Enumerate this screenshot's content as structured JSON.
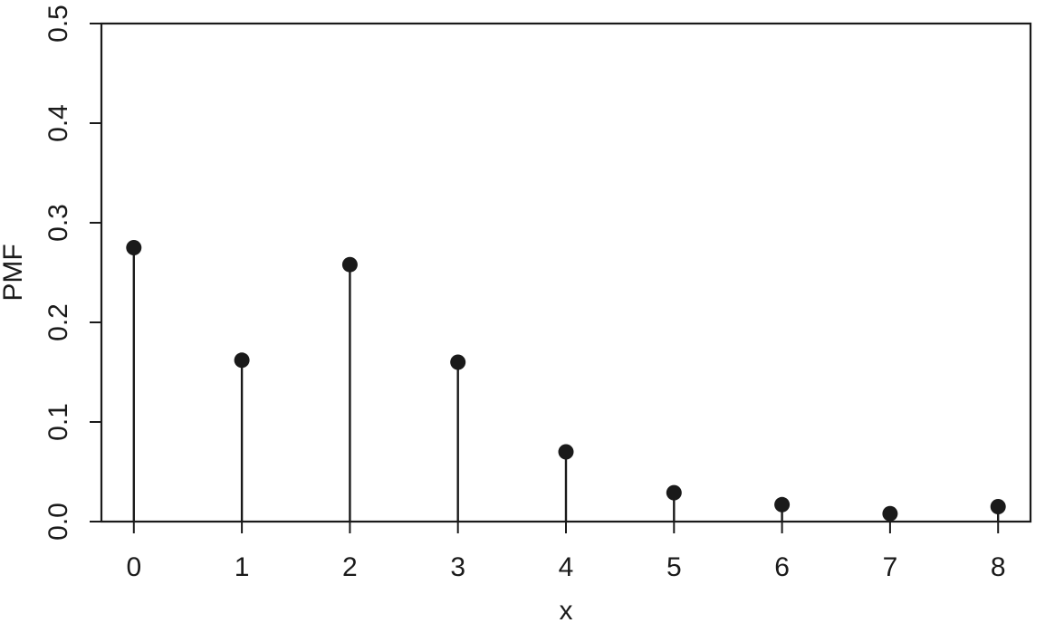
{
  "chart_data": {
    "type": "scatter",
    "style": "stem",
    "title": "",
    "xlabel": "x",
    "ylabel": "PMF",
    "x": [
      0,
      1,
      2,
      3,
      4,
      5,
      6,
      7,
      8
    ],
    "y": [
      0.275,
      0.162,
      0.258,
      0.16,
      0.07,
      0.029,
      0.017,
      0.008,
      0.015
    ],
    "xlim": [
      -0.3,
      8.3
    ],
    "ylim": [
      0,
      0.5
    ],
    "xticks": [
      "0",
      "1",
      "2",
      "3",
      "4",
      "5",
      "6",
      "7",
      "8"
    ],
    "yticks": [
      "0.0",
      "0.1",
      "0.2",
      "0.3",
      "0.4",
      "0.5"
    ],
    "grid": false,
    "legend": "none",
    "colors": {
      "marker": "#1a1a1a",
      "stem": "#1a1a1a",
      "axis": "#1a1a1a"
    }
  }
}
